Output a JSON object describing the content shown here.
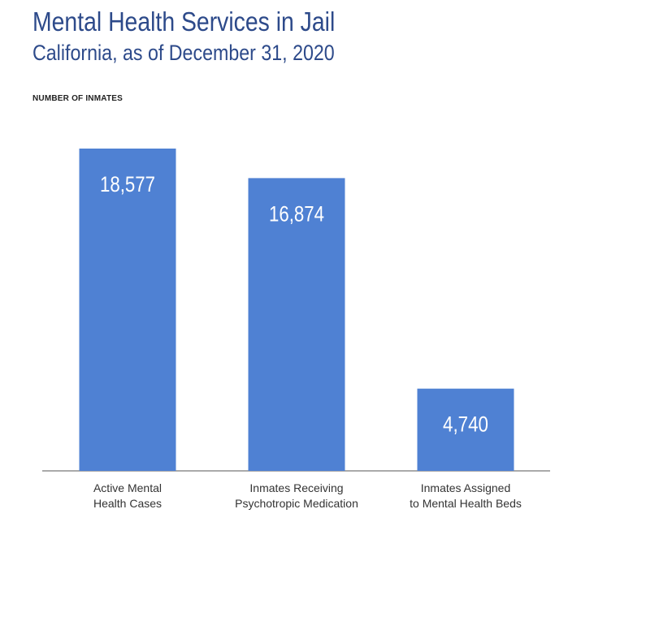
{
  "chart_data": {
    "type": "bar",
    "title": "Mental Health Services in Jail",
    "subtitle": "California, as of December 31, 2020",
    "ylabel": "NUMBER OF INMATES",
    "xlabel": "",
    "categories": [
      [
        "Active Mental",
        "Health Cases"
      ],
      [
        "Inmates Receiving",
        "Psychotropic Medication"
      ],
      [
        "Inmates Assigned",
        "to Mental Health Beds"
      ]
    ],
    "values": [
      18577,
      16874,
      4740
    ],
    "value_labels": [
      "18,577",
      "16,874",
      "4,740"
    ],
    "ylim": [
      0,
      18577
    ],
    "grid": false,
    "bar_color": "#4f81d3"
  }
}
